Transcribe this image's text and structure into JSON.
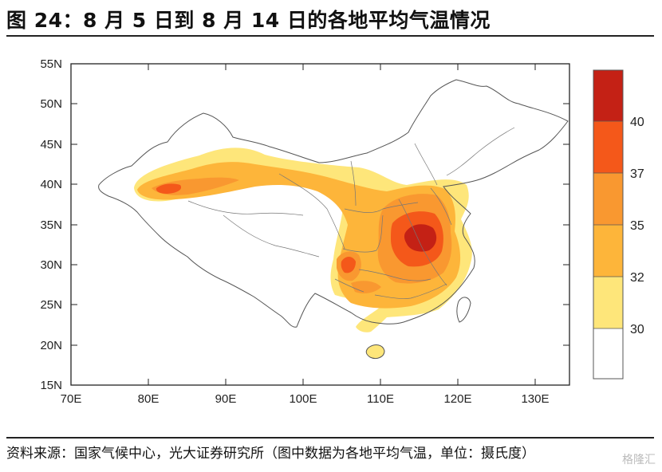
{
  "title": "图 24：8 月 5 日到 8 月 14 日的各地平均气温情况",
  "source": "资料来源：国家气候中心，光大证券研究所（图中数据为各地平均气温，单位：摄氏度）",
  "watermark": "格隆汇",
  "map": {
    "lon_range": [
      70,
      135
    ],
    "lat_range": [
      15,
      55
    ],
    "lon_ticks": [
      "70E",
      "80E",
      "90E",
      "100E",
      "110E",
      "120E",
      "130E"
    ],
    "lat_ticks": [
      "15N",
      "20N",
      "25N",
      "30N",
      "35N",
      "40N",
      "45N",
      "50N",
      "55N"
    ]
  },
  "legend": {
    "bands": [
      {
        "color": "#ffffff"
      },
      {
        "color": "#fee67a"
      },
      {
        "color": "#fdb53a"
      },
      {
        "color": "#f99830"
      },
      {
        "color": "#f4581a"
      },
      {
        "color": "#fb6a0a"
      },
      {
        "color": "#c42115"
      }
    ],
    "labels": [
      "30",
      "32",
      "35",
      "37",
      "40"
    ]
  }
}
